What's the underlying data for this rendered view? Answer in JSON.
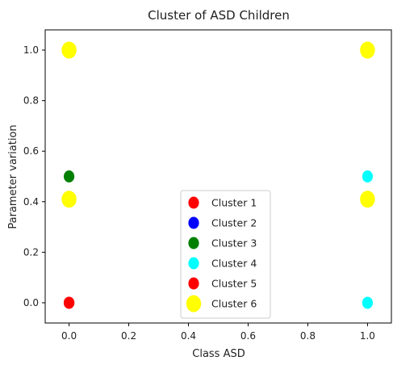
{
  "chart_data": {
    "type": "scatter",
    "title": "Cluster of ASD Children",
    "xlabel": "Class  ASD",
    "ylabel": "Parameter variation",
    "xlim": [
      -0.08,
      1.08
    ],
    "ylim": [
      -0.08,
      1.08
    ],
    "xticks": [
      "0.0",
      "0.2",
      "0.4",
      "0.6",
      "0.8",
      "1.0"
    ],
    "yticks": [
      "0.0",
      "0.2",
      "0.4",
      "0.6",
      "0.8",
      "1.0"
    ],
    "legend_position": "lower-center",
    "grid": false,
    "series": [
      {
        "name": "Cluster 1",
        "color": "#ff0000",
        "size": "medium",
        "points": [
          [
            0.0,
            0.0
          ]
        ]
      },
      {
        "name": "Cluster 2",
        "color": "#0000ff",
        "size": "medium",
        "points": []
      },
      {
        "name": "Cluster 3",
        "color": "#008000",
        "size": "medium",
        "points": [
          [
            0.0,
            0.5
          ]
        ]
      },
      {
        "name": "Cluster 4",
        "color": "#00ffff",
        "size": "medium",
        "points": [
          [
            1.0,
            0.5
          ],
          [
            1.0,
            0.0
          ]
        ]
      },
      {
        "name": "Cluster 5",
        "color": "#ff0000",
        "size": "medium",
        "points": [
          [
            0.0,
            0.0
          ]
        ]
      },
      {
        "name": "Cluster 6",
        "color": "#ffff00",
        "size": "large",
        "points": [
          [
            0.0,
            1.0
          ],
          [
            1.0,
            1.0
          ],
          [
            0.0,
            0.41
          ],
          [
            1.0,
            0.41
          ]
        ]
      }
    ]
  }
}
